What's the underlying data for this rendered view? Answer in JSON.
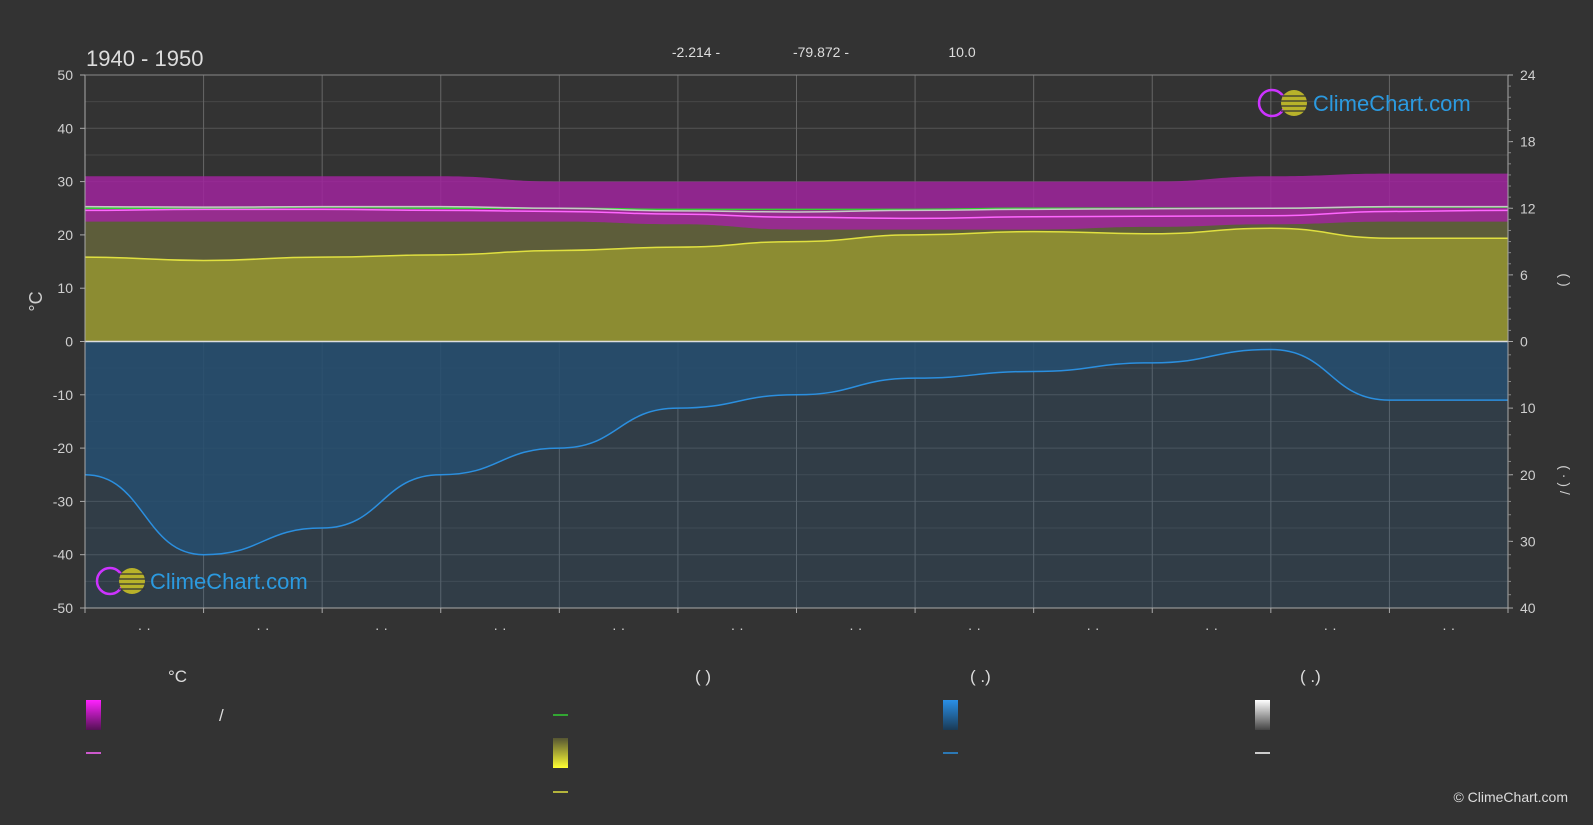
{
  "header": {
    "period": "1940 - 1950",
    "lat": "-2.214 -",
    "lon": "-79.872 -",
    "elev": "10.0"
  },
  "logo": {
    "text": "ClimeChart.com"
  },
  "copyright": "© ClimeChart.com",
  "colors": {
    "background": "#333333",
    "daylight": "#2f8a35",
    "sunshine": "#e0e040",
    "temp_mean": "#ff66ff",
    "temp_band": "#dd22dd",
    "precip": "#2b8fdf",
    "grey_band": "#b0b0b0"
  },
  "legend": {
    "col1_header": "°C",
    "col2_header": "(          )",
    "col3_header": "(    .)",
    "col4_header": "(    .)",
    "col1_slash": "/"
  },
  "chart_data": {
    "type": "line",
    "x_tick_labels": [
      "· ·",
      "· ·",
      "· ·",
      "· ·",
      "· ·",
      "· ·",
      "· ·",
      "· ·",
      "· ·",
      "· ·",
      "· ·",
      "· ·"
    ],
    "left_axis": {
      "label": "°C",
      "range": [
        -50,
        50
      ],
      "ticks": [
        50,
        40,
        30,
        20,
        10,
        0,
        -10,
        -20,
        -30,
        -40,
        -50
      ]
    },
    "right_axis_top": {
      "label": "(     )",
      "range": [
        0,
        24
      ],
      "ticks": [
        24,
        18,
        12,
        6,
        0
      ]
    },
    "right_axis_bottom": {
      "label": "(  ·  )  /",
      "range": [
        0,
        40
      ],
      "ticks": [
        0,
        10,
        20,
        30,
        40
      ]
    },
    "grid": true,
    "x": [
      0,
      1,
      2,
      3,
      4,
      5,
      6,
      7,
      8,
      9,
      10,
      11,
      12
    ],
    "series": [
      {
        "values_h": [
          12.0,
          12.0,
          12.1,
          12.0,
          12.0,
          11.9,
          11.9,
          11.9,
          12.0,
          12.0,
          12.0,
          12.1,
          12.1
        ]
      },
      {
        "values_c": [
          25.3,
          25.2,
          25.3,
          25.3,
          25.0,
          24.5,
          24.3,
          24.6,
          24.8,
          24.9,
          25.0,
          25.3,
          25.3
        ]
      },
      {
        "values_c": [
          24.6,
          24.8,
          24.8,
          24.6,
          24.4,
          23.9,
          23.3,
          23.1,
          23.4,
          23.5,
          23.6,
          24.4,
          24.6
        ]
      },
      {
        "values_h": [
          7.6,
          7.3,
          7.6,
          7.8,
          8.2,
          8.5,
          9.0,
          9.6,
          9.9,
          9.7,
          10.2,
          9.3,
          9.3
        ]
      },
      {
        "values_mm": [
          20,
          32,
          28,
          20,
          16,
          10,
          8,
          5.5,
          4.5,
          3.2,
          1.2,
          8.8,
          8.8
        ]
      }
    ],
    "temp_band_c": [
      [
        22.5,
        31
      ],
      [
        22.5,
        31
      ],
      [
        22.5,
        31
      ],
      [
        22.5,
        31
      ],
      [
        22.5,
        30
      ],
      [
        22,
        30
      ],
      [
        21,
        30
      ],
      [
        21,
        30
      ],
      [
        21,
        30
      ],
      [
        21.5,
        30
      ],
      [
        22,
        31
      ],
      [
        22.5,
        31.5
      ],
      [
        22.5,
        31.5
      ]
    ]
  }
}
